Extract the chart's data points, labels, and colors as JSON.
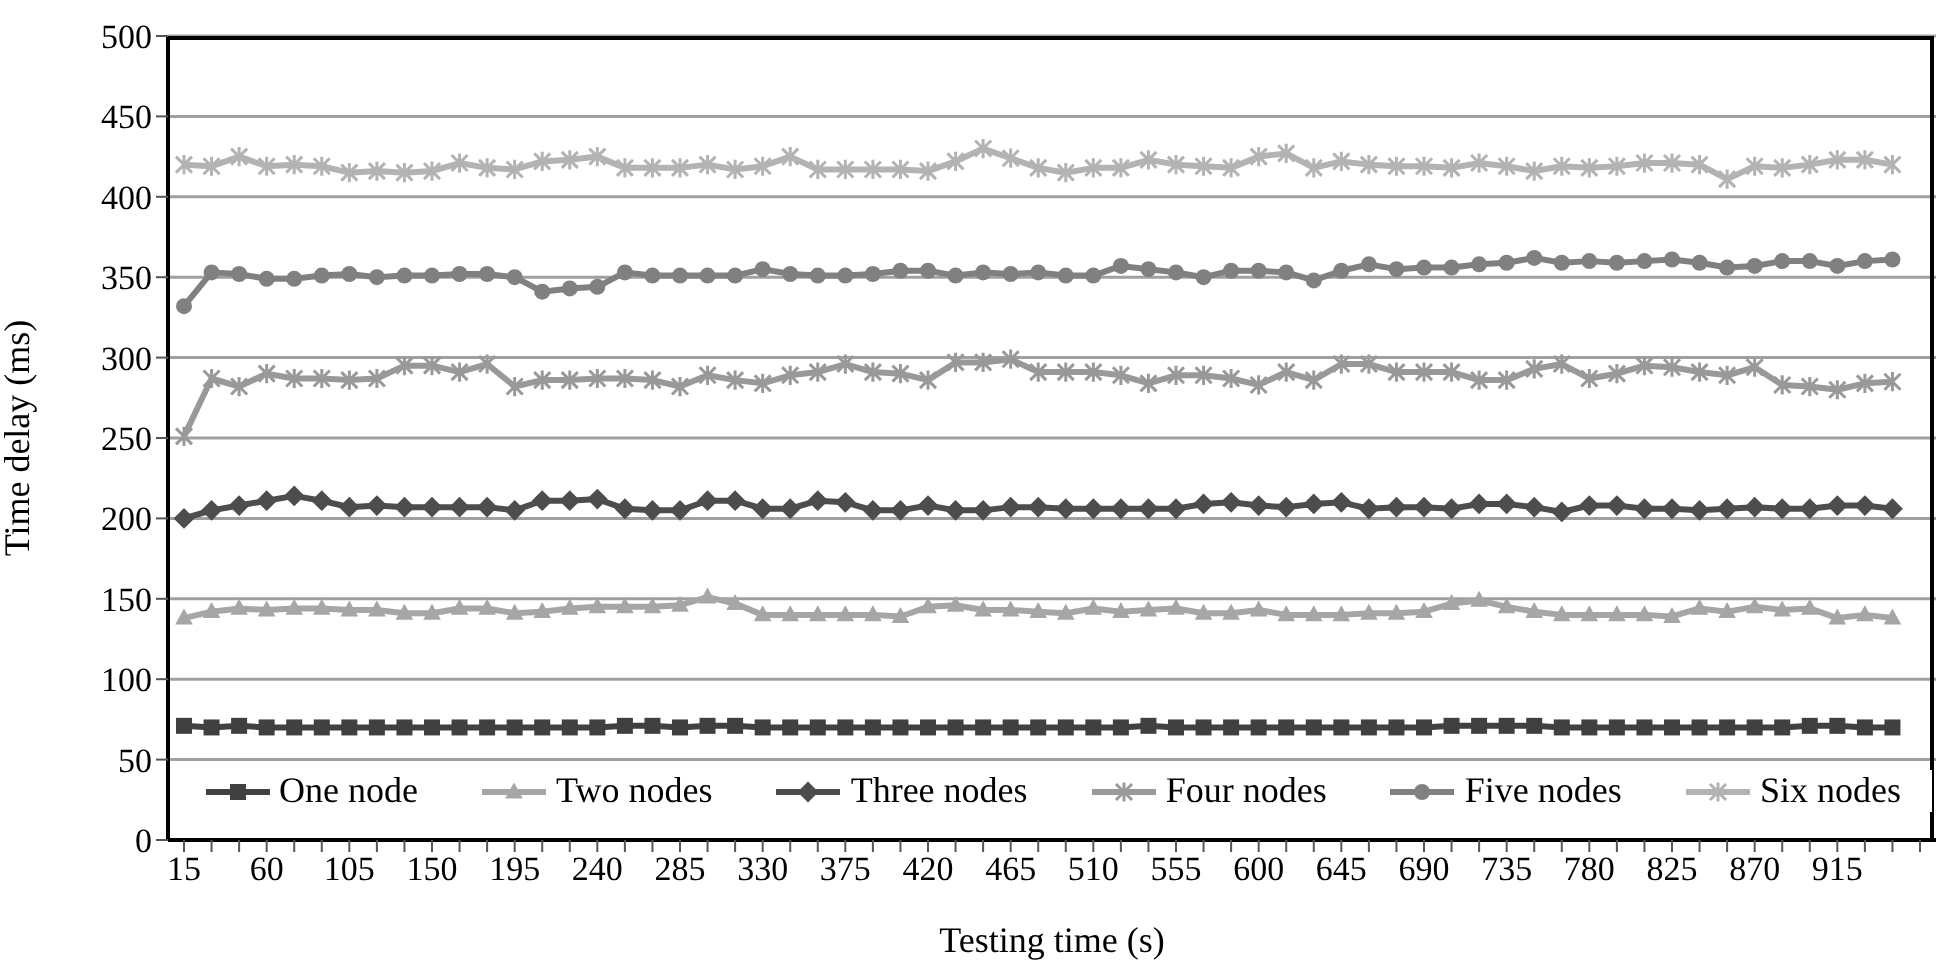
{
  "chart_data": {
    "type": "line",
    "xlabel": "Testing time (s)",
    "ylabel": "Time delay (ms)",
    "categories": [
      "15",
      null,
      null,
      "60",
      null,
      null,
      "105",
      null,
      null,
      "150",
      null,
      null,
      "195",
      null,
      null,
      "240",
      null,
      null,
      "285",
      null,
      null,
      "330",
      null,
      null,
      "375",
      null,
      null,
      "420",
      null,
      null,
      "465",
      null,
      null,
      "510",
      null,
      null,
      "555",
      null,
      null,
      "600",
      null,
      null,
      "645",
      null,
      null,
      "690",
      null,
      null,
      "735",
      null,
      null,
      "780",
      null,
      null,
      "825",
      null,
      null,
      "870",
      null,
      null,
      "915",
      null,
      null,
      null
    ],
    "ylim": [
      0,
      500
    ],
    "yticks": [
      0,
      50,
      100,
      150,
      200,
      250,
      300,
      350,
      400,
      450,
      500
    ],
    "grid": "y",
    "legend": "bottom",
    "line_style": "solid",
    "series": [
      {
        "name": "One node",
        "color": "#404040",
        "marker": "square",
        "values": [
          71,
          70,
          71,
          70,
          70,
          70,
          70,
          70,
          70,
          70,
          70,
          70,
          70,
          70,
          70,
          70,
          71,
          71,
          70,
          71,
          71,
          70,
          70,
          70,
          70,
          70,
          70,
          70,
          70,
          70,
          70,
          70,
          70,
          70,
          70,
          71,
          70,
          70,
          70,
          70,
          70,
          70,
          70,
          70,
          70,
          70,
          71,
          71,
          71,
          71,
          70,
          70,
          70,
          70,
          70,
          70,
          70,
          70,
          70,
          71,
          71,
          70,
          70,
          null
        ]
      },
      {
        "name": "Two nodes",
        "color": "#a6a6a6",
        "marker": "triangle",
        "values": [
          138,
          142,
          144,
          143,
          144,
          144,
          143,
          143,
          141,
          141,
          144,
          144,
          141,
          142,
          144,
          145,
          145,
          145,
          146,
          151,
          147,
          140,
          140,
          140,
          140,
          140,
          139,
          145,
          146,
          143,
          143,
          142,
          141,
          144,
          142,
          143,
          144,
          141,
          141,
          143,
          140,
          140,
          140,
          141,
          141,
          142,
          147,
          149,
          145,
          142,
          140,
          140,
          140,
          140,
          139,
          144,
          142,
          145,
          143,
          144,
          138,
          140,
          138,
          null
        ]
      },
      {
        "name": "Three nodes",
        "color": "#4d4d4d",
        "marker": "diamond",
        "values": [
          200,
          205,
          208,
          211,
          214,
          211,
          207,
          208,
          207,
          207,
          207,
          207,
          205,
          211,
          211,
          212,
          206,
          205,
          205,
          211,
          211,
          206,
          206,
          211,
          210,
          205,
          205,
          208,
          205,
          205,
          207,
          207,
          206,
          206,
          206,
          206,
          206,
          209,
          210,
          208,
          207,
          209,
          210,
          206,
          207,
          207,
          206,
          209,
          209,
          207,
          204,
          208,
          208,
          206,
          206,
          205,
          206,
          207,
          206,
          206,
          208,
          208,
          206,
          null
        ]
      },
      {
        "name": "Four nodes",
        "color": "#999999",
        "marker": "cross",
        "values": [
          251,
          287,
          282,
          290,
          287,
          287,
          286,
          287,
          295,
          295,
          291,
          296,
          282,
          286,
          286,
          287,
          287,
          286,
          282,
          289,
          286,
          284,
          289,
          291,
          296,
          291,
          290,
          286,
          297,
          297,
          299,
          291,
          291,
          291,
          289,
          284,
          289,
          289,
          287,
          283,
          291,
          286,
          296,
          296,
          291,
          291,
          291,
          286,
          286,
          293,
          296,
          287,
          290,
          295,
          294,
          291,
          289,
          294,
          283,
          282,
          280,
          284,
          285,
          null
        ]
      },
      {
        "name": "Five nodes",
        "color": "#808080",
        "marker": "circle",
        "values": [
          332,
          353,
          352,
          349,
          349,
          351,
          352,
          350,
          351,
          351,
          352,
          352,
          350,
          341,
          343,
          344,
          353,
          351,
          351,
          351,
          351,
          355,
          352,
          351,
          351,
          352,
          354,
          354,
          351,
          353,
          352,
          353,
          351,
          351,
          357,
          355,
          353,
          350,
          354,
          354,
          353,
          348,
          354,
          358,
          355,
          356,
          356,
          358,
          359,
          362,
          359,
          360,
          359,
          360,
          361,
          359,
          356,
          357,
          360,
          360,
          357,
          360,
          361,
          null
        ]
      },
      {
        "name": "Six nodes",
        "color": "#b3b3b3",
        "marker": "cross",
        "values": [
          420,
          419,
          425,
          419,
          420,
          419,
          415,
          416,
          415,
          416,
          421,
          418,
          417,
          422,
          423,
          425,
          418,
          418,
          418,
          420,
          417,
          419,
          425,
          417,
          417,
          417,
          417,
          416,
          422,
          430,
          424,
          418,
          415,
          418,
          418,
          423,
          420,
          419,
          418,
          425,
          427,
          418,
          422,
          420,
          419,
          419,
          418,
          421,
          419,
          416,
          419,
          418,
          419,
          421,
          421,
          420,
          411,
          419,
          418,
          420,
          423,
          423,
          420,
          null
        ]
      }
    ]
  }
}
